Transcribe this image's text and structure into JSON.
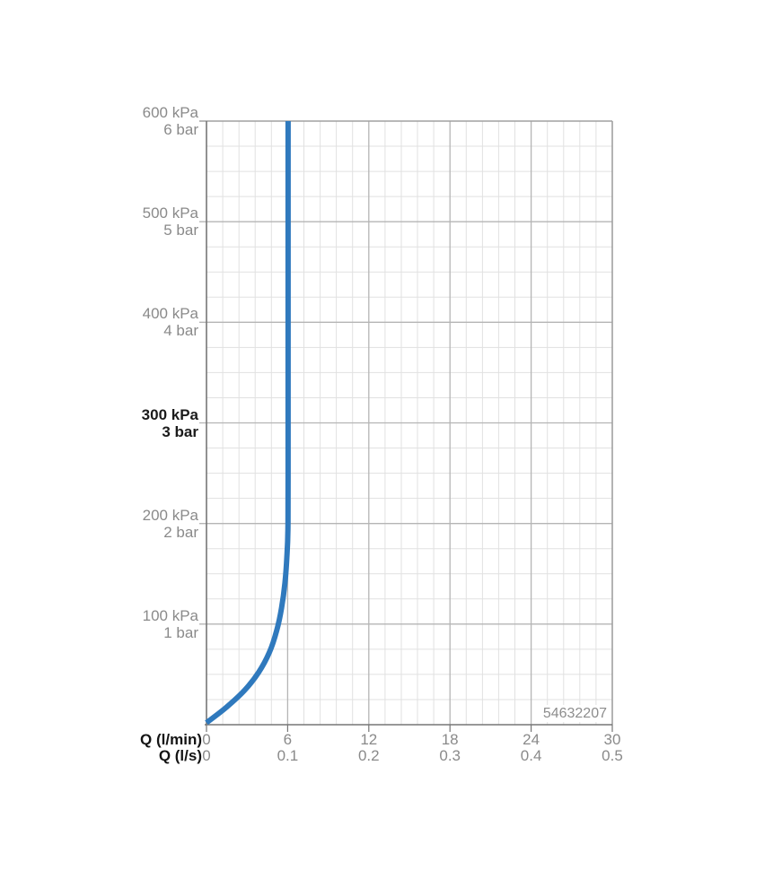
{
  "chart_data": {
    "type": "line",
    "title": "",
    "product_number": "54632207",
    "grid": true,
    "legend": null,
    "x_axis": {
      "label_lmin": "Q (l/min)",
      "label_ls": "Q (l/s)",
      "range_lmin": [
        0,
        30
      ],
      "major_step_lmin": 6,
      "minor_step_lmin": 1.2,
      "ticks_lmin": [
        "0",
        "6",
        "12",
        "18",
        "24",
        "30"
      ],
      "ticks_ls": [
        "0",
        "0.1",
        "0.2",
        "0.3",
        "0.4",
        "0.5"
      ]
    },
    "y_axis": {
      "unit_primary": "kPa",
      "unit_secondary": "bar",
      "range_kpa": [
        0,
        600
      ],
      "major_step_kpa": 100,
      "minor_step_kpa": 25,
      "ticks": [
        {
          "value": 600,
          "kpa": "600 kPa",
          "bar": "6 bar",
          "bold": false
        },
        {
          "value": 500,
          "kpa": "500 kPa",
          "bar": "5 bar",
          "bold": false
        },
        {
          "value": 400,
          "kpa": "400 kPa",
          "bar": "4 bar",
          "bold": false
        },
        {
          "value": 300,
          "kpa": "300 kPa",
          "bar": "3 bar",
          "bold": true
        },
        {
          "value": 200,
          "kpa": "200 kPa",
          "bar": "2 bar",
          "bold": false
        },
        {
          "value": 100,
          "kpa": "100 kPa",
          "bar": "1 bar",
          "bold": false
        }
      ]
    },
    "series": [
      {
        "name": "flow-pressure-curve",
        "color": "#2f79bd",
        "points_lmin_kpa": [
          [
            0,
            2
          ],
          [
            1.45,
            17
          ],
          [
            2.8,
            34
          ],
          [
            3.85,
            52
          ],
          [
            4.65,
            72
          ],
          [
            5.2,
            94
          ],
          [
            5.55,
            116
          ],
          [
            5.8,
            141
          ],
          [
            5.95,
            168
          ],
          [
            6.02,
            194
          ],
          [
            6.03,
            250
          ],
          [
            6.03,
            420
          ],
          [
            6.03,
            600
          ]
        ]
      }
    ],
    "colors": {
      "curve": "#2f79bd",
      "grid_major": "#b5b5b5",
      "grid_minor": "#e1e1e1",
      "axis": "#767676",
      "border": "#a0a0a0",
      "label_gray": "#8a8a8a",
      "label_black": "#1b1b1b"
    }
  }
}
